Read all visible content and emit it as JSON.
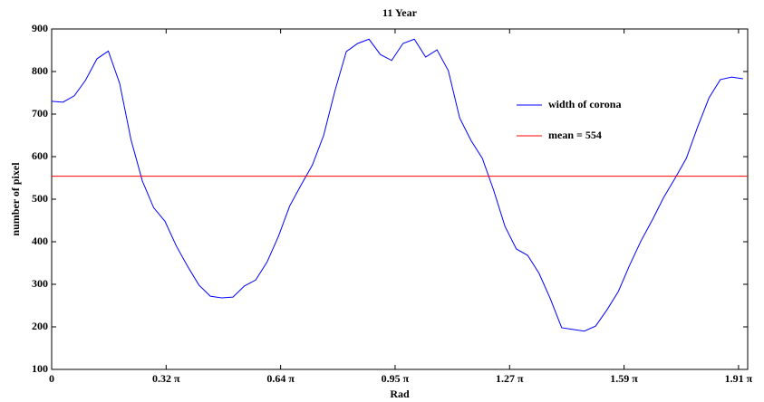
{
  "chart_data": {
    "type": "line",
    "title": "11 Year",
    "x_label": "Rad",
    "y_label": "number of pixel",
    "x": [
      0,
      0.099,
      0.198,
      0.297,
      0.396,
      0.495,
      0.594,
      0.693,
      0.792,
      0.891,
      0.99,
      1.089,
      1.188,
      1.287,
      1.386,
      1.485,
      1.584,
      1.683,
      1.782,
      1.881,
      1.98,
      2.079,
      2.178,
      2.277,
      2.376,
      2.475,
      2.574,
      2.673,
      2.772,
      2.871,
      2.97,
      3.069,
      3.168,
      3.267,
      3.366,
      3.465,
      3.564,
      3.663,
      3.762,
      3.861,
      3.96,
      4.059,
      4.158,
      4.257,
      4.356,
      4.455,
      4.554,
      4.653,
      4.752,
      4.851,
      4.95,
      5.049,
      5.148,
      5.247,
      5.346,
      5.445,
      5.544,
      5.643,
      5.742,
      5.841,
      5.94,
      6.039
    ],
    "series": [
      {
        "name": "width of corona",
        "color": "#0000ff",
        "values": [
          730,
          728,
          743,
          780,
          830,
          848,
          772,
          640,
          543,
          480,
          448,
          390,
          342,
          298,
          272,
          268,
          270,
          296,
          310,
          352,
          412,
          484,
          533,
          580,
          650,
          755,
          847,
          866,
          876,
          840,
          826,
          866,
          876,
          834,
          851,
          802,
          691,
          638,
          596,
          521,
          436,
          383,
          368,
          326,
          266,
          198,
          194,
          190,
          202,
          240,
          283,
          345,
          402,
          451,
          504,
          549,
          596,
          670,
          738,
          781,
          787,
          783
        ]
      },
      {
        "name": "mean = 554",
        "color": "#ff0000",
        "y": 554
      }
    ],
    "xlim": [
      0,
      6.08
    ],
    "ylim": [
      100,
      900
    ],
    "xticks": [
      0,
      {
        "value": 1,
        "label": "0.32 π"
      },
      {
        "value": 2,
        "label": "0.64 π"
      },
      {
        "value": 3,
        "label": "0.95 π"
      },
      {
        "value": 4,
        "label": "1.27 π"
      },
      {
        "value": 5,
        "label": "1.59 π"
      },
      {
        "value": 6,
        "label": "1.91 π"
      }
    ],
    "yticks": [
      100,
      200,
      300,
      400,
      500,
      600,
      700,
      800,
      900
    ]
  }
}
